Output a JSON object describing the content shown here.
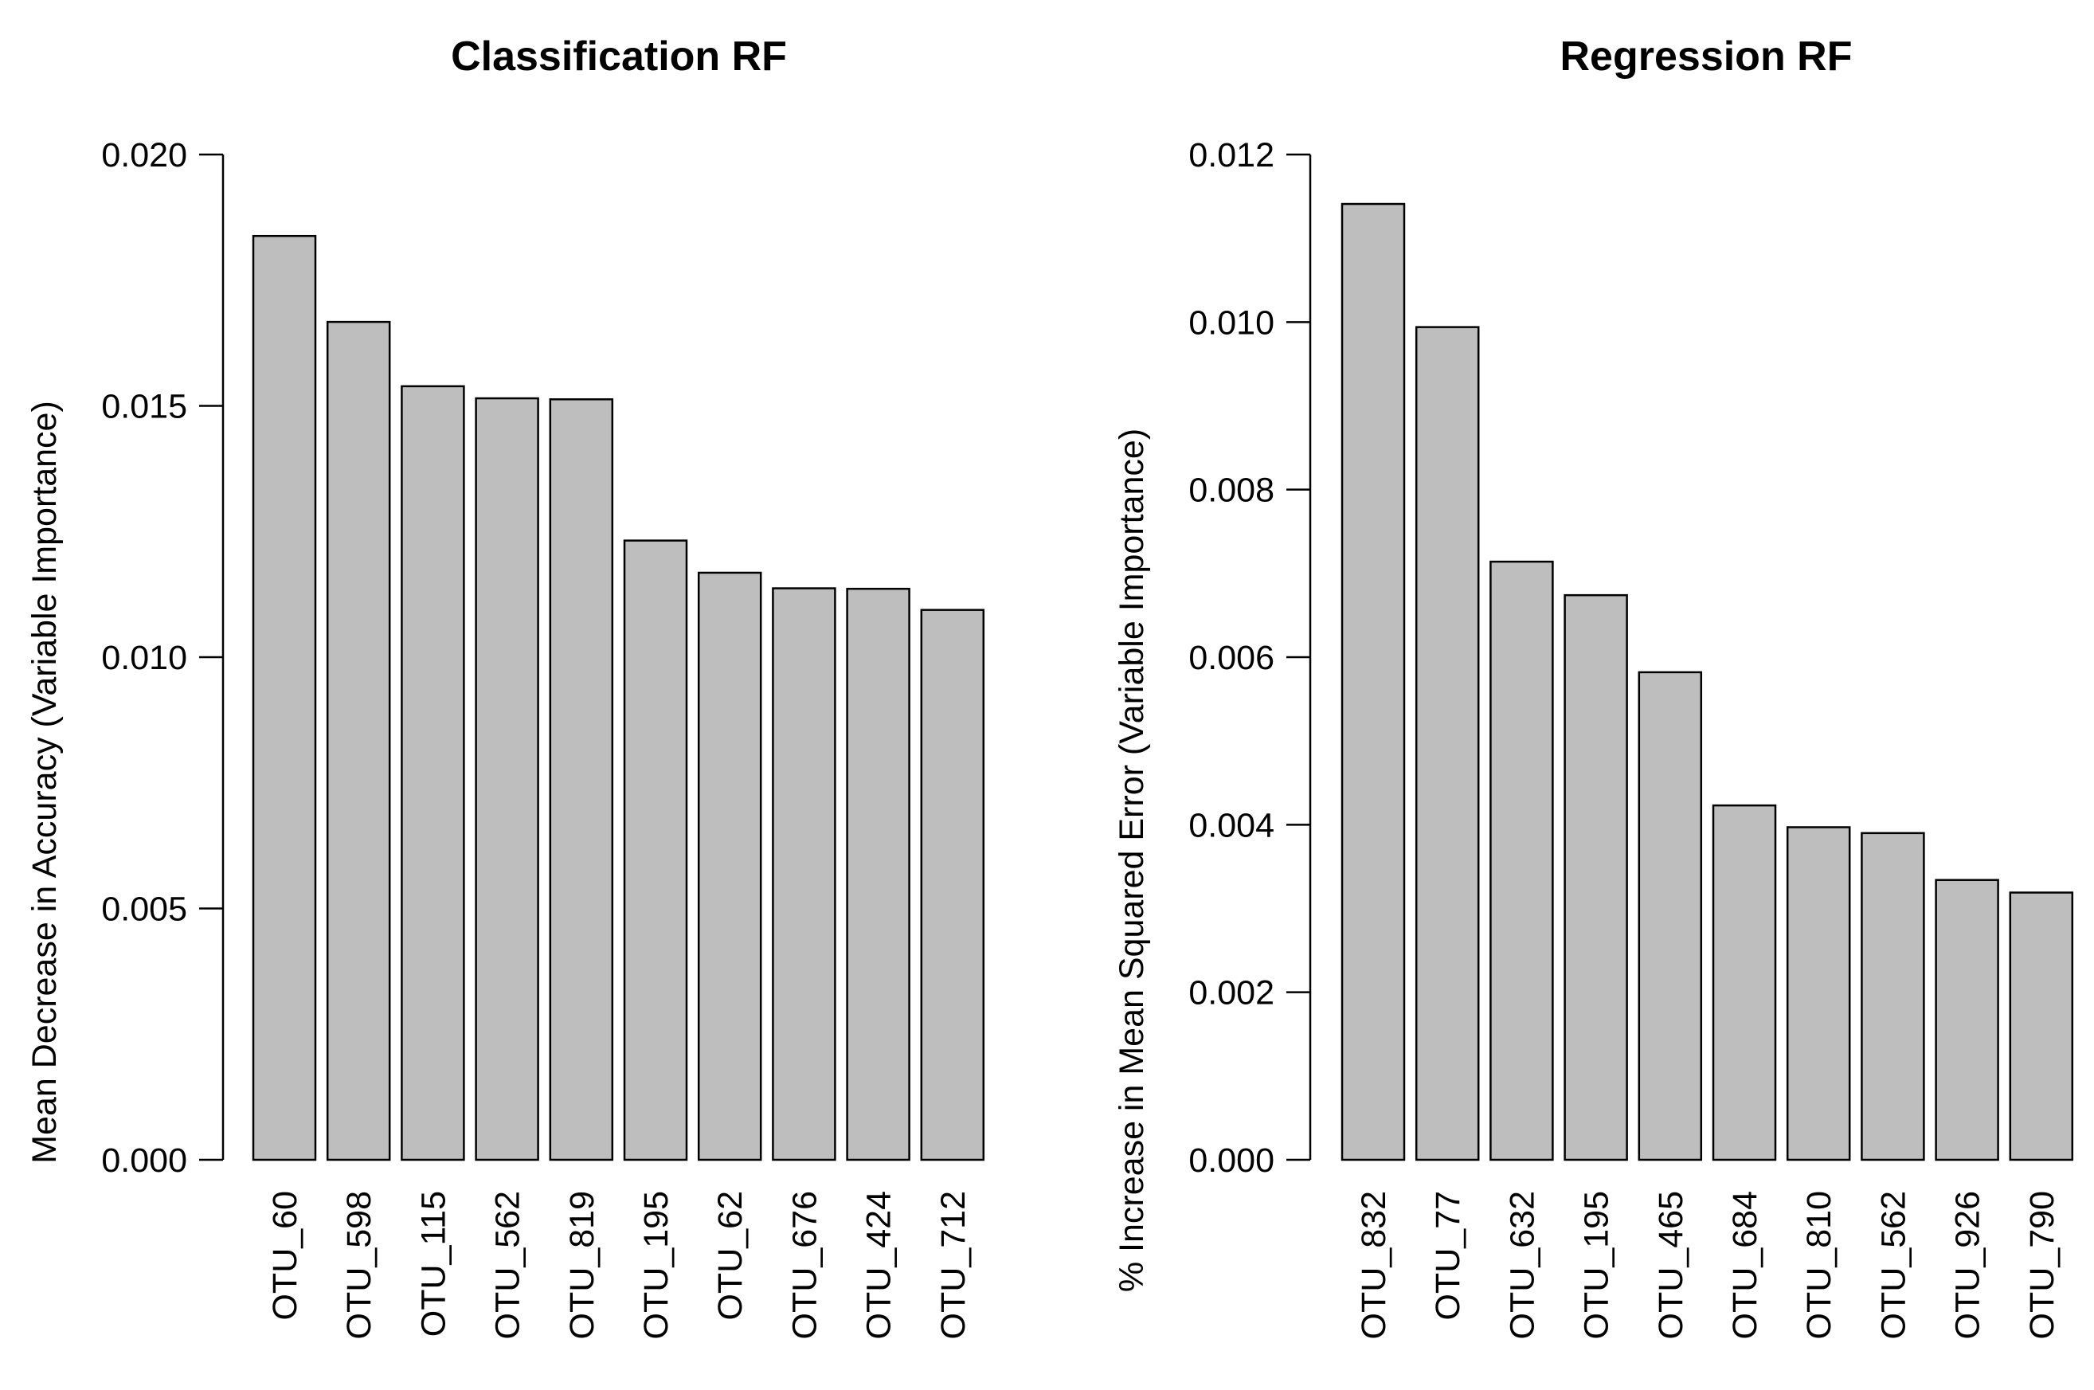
{
  "chart_data": [
    {
      "type": "bar",
      "title": "Classification RF",
      "ylabel": "Mean Decrease in Accuracy (Variable Importance)",
      "categories": [
        "OTU_60",
        "OTU_598",
        "OTU_115",
        "OTU_562",
        "OTU_819",
        "OTU_195",
        "OTU_62",
        "OTU_676",
        "OTU_424",
        "OTU_712"
      ],
      "values": [
        0.01838,
        0.01667,
        0.01539,
        0.01515,
        0.01513,
        0.01232,
        0.01168,
        0.01137,
        0.01136,
        0.01094
      ],
      "ylim": [
        0,
        0.02
      ],
      "yticks": [
        "0.000",
        "0.005",
        "0.010",
        "0.015",
        "0.020"
      ],
      "bar_color": "#bebebe",
      "grid": false
    },
    {
      "type": "bar",
      "title": "Regression RF",
      "ylabel": "% Increase in Mean Squared Error (Variable Importance)",
      "categories": [
        "OTU_832",
        "OTU_77",
        "OTU_632",
        "OTU_195",
        "OTU_465",
        "OTU_684",
        "OTU_810",
        "OTU_562",
        "OTU_926",
        "OTU_790"
      ],
      "values": [
        0.01141,
        0.00994,
        0.00714,
        0.00674,
        0.00582,
        0.00423,
        0.00397,
        0.0039,
        0.00334,
        0.00319
      ],
      "ylim": [
        0,
        0.012
      ],
      "yticks": [
        "0.000",
        "0.002",
        "0.004",
        "0.006",
        "0.008",
        "0.010",
        "0.012"
      ],
      "bar_color": "#bebebe",
      "grid": false
    }
  ]
}
